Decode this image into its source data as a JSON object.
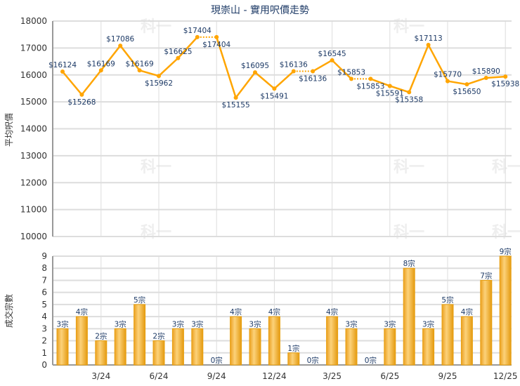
{
  "chart_data": [
    {
      "type": "line",
      "title": "現崇山 - 實用呎價走勢",
      "ylabel": "平均呎價",
      "ylim": [
        10000,
        18000
      ],
      "grid": true,
      "yticks": [
        10000,
        11000,
        12000,
        13000,
        14000,
        15000,
        16000,
        17000,
        18000
      ],
      "x": [
        "1/24",
        "2/24",
        "3/24",
        "4/24",
        "5/24",
        "6/24",
        "7/24",
        "8/24",
        "9/24",
        "10/24",
        "11/24",
        "12/24",
        "1/25",
        "2/25",
        "3/25",
        "4/25",
        "5/25",
        "6/25",
        "7/25",
        "8/25",
        "9/25",
        "10/25",
        "11/25",
        "12/25"
      ],
      "values": [
        16124,
        15268,
        16169,
        17086,
        16169,
        15962,
        16625,
        17404,
        17404,
        15155,
        16095,
        15491,
        16136,
        16136,
        16545,
        15853,
        15853,
        15591,
        15358,
        17113,
        15770,
        15650,
        15890,
        15938
      ],
      "value_prefix": "$",
      "color": "#ffa500"
    },
    {
      "type": "bar",
      "ylabel": "成交宗數",
      "ylim": [
        0,
        9
      ],
      "grid": true,
      "yticks": [
        0,
        1,
        2,
        3,
        4,
        5,
        6,
        7,
        8,
        9
      ],
      "xticks": [
        "3/24",
        "6/24",
        "9/24",
        "12/24",
        "3/25",
        "6/25",
        "9/25",
        "12/25"
      ],
      "values": [
        3,
        4,
        2,
        3,
        5,
        2,
        3,
        3,
        0,
        4,
        3,
        4,
        1,
        0,
        4,
        3,
        0,
        3,
        8,
        3,
        5,
        4,
        7,
        9
      ],
      "value_suffix": "宗",
      "color": "#f0a820"
    }
  ],
  "watermark": "科一"
}
